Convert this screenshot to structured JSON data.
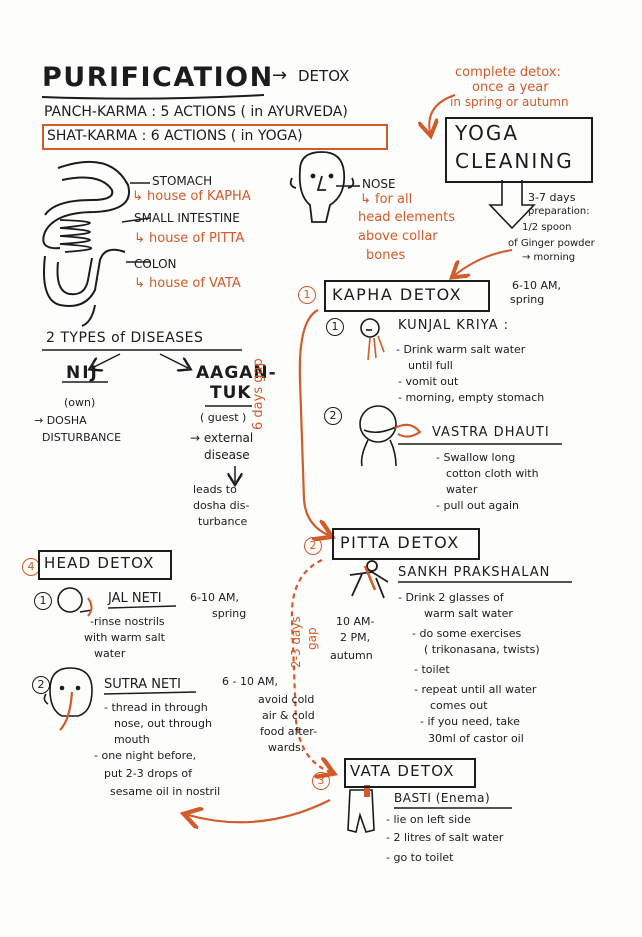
{
  "title": "PURIFICATION",
  "title_arrow": "→",
  "title_detox": "DETOX",
  "panch_karma": "PANCH-KARMA : 5 ACTIONS ( in AYURVEDA)",
  "shat_karma": "SHAT-KARMA : 6 ACTIONS ( in YOGA)",
  "complete_detox": [
    "complete detox:",
    "once a year",
    "in spring or autumn"
  ],
  "yoga_cleaning": [
    "YOGA",
    "CLEANING"
  ],
  "preparation": [
    "3-7 days",
    "preparation:",
    "1/2 spoon",
    "of Ginger powder",
    "→ morning"
  ],
  "organs": {
    "stomach": "STOMACH",
    "stomach_house": "↳ house of KAPHA",
    "small_intestine": "SMALL INTESTINE",
    "small_house": "↳ house of PITTA",
    "colon": "COLON",
    "colon_house": "↳ house of VATA",
    "nose": "NOSE",
    "nose_note": [
      "↳ for all",
      "head elements",
      "above collar",
      "bones"
    ]
  },
  "diseases": {
    "title": "2 TYPES of DISEASES",
    "nij": "NIJ",
    "nij_sub": "(own)",
    "nij_desc": [
      "→ DOSHA",
      "DISTURBANCE"
    ],
    "aagantuk": [
      "AAGAN-",
      "TUK"
    ],
    "aagantuk_sub": "( guest )",
    "aagantuk_desc": [
      "→ external",
      "disease"
    ],
    "leads": [
      "leads to",
      "dosha dis-",
      "turbance"
    ]
  },
  "kapha": {
    "num": "1",
    "title": "KAPHA DETOX",
    "time": [
      "6-10 AM,",
      "spring"
    ],
    "kunjal": {
      "num": "1",
      "title": "KUNJAL KRIYA :",
      "steps": [
        "- Drink warm salt water",
        "until full",
        "- vomit out",
        "- morning, empty stomach"
      ]
    },
    "vastra": {
      "num": "2",
      "title": "VASTRA DHAUTI",
      "steps": [
        "- Swallow long",
        "cotton cloth with",
        "water",
        "- pull out again"
      ]
    }
  },
  "gap_6": "6 days gap",
  "gap_23": [
    "2-3 days",
    "gap"
  ],
  "pitta": {
    "num": "2",
    "title": "PITTA DETOX",
    "time": [
      "10 AM-",
      "2 PM,",
      "autumn"
    ],
    "sankh": {
      "title": "SANKH PRAKSHALAN",
      "steps": [
        "- Drink 2 glasses of",
        "warm salt water",
        "- do some exercises",
        "( trikonasana, twists)",
        "- toilet",
        "- repeat until all water",
        "comes out",
        "- if you need, take",
        "30ml of castor oil"
      ]
    }
  },
  "vata": {
    "num": "3",
    "title": "VATA DETOX",
    "basti": {
      "title": "BASTI (Enema)",
      "steps": [
        "- lie on left side",
        "- 2 litres of salt water",
        "- go to toilet"
      ]
    }
  },
  "head": {
    "num": "4",
    "title": "HEAD DETOX",
    "jal": {
      "num": "1",
      "title": "JAL NETI",
      "time": [
        "6-10 AM,",
        "spring"
      ],
      "steps": [
        "-rinse nostrils",
        "with warm salt",
        "water"
      ]
    },
    "sutra": {
      "num": "2",
      "title": "SUTRA NETI",
      "time": "6 - 10 AM,",
      "steps": [
        "- thread in through",
        "nose, out through",
        "mouth",
        "- one night before,",
        "put 2-3 drops of",
        "sesame oil in nostril"
      ]
    },
    "avoid": [
      "avoid cold",
      "air & cold",
      "food after-",
      "wards."
    ]
  },
  "colors": {
    "ink": "#1c1c1c",
    "accent": "#d35a2a"
  }
}
